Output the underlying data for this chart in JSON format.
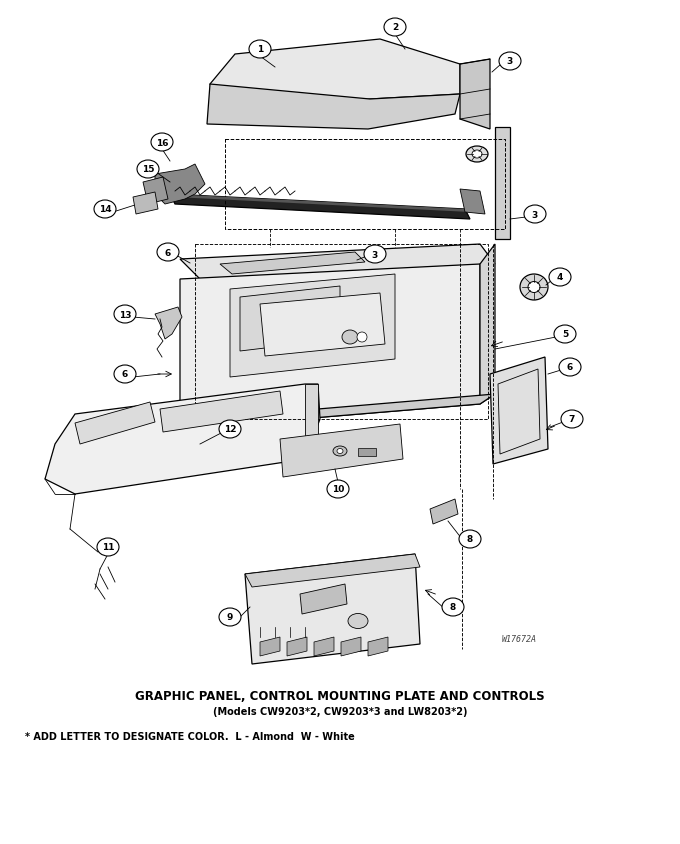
{
  "title_main": "GRAPHIC PANEL, CONTROL MOUNTING PLATE AND CONTROLS",
  "title_sub": "(Models CW9203*2, CW9203*3 and LW8203*2)",
  "footnote": "* ADD LETTER TO DESIGNATE COLOR.  L - Almond  W - White",
  "watermark": "W17672A",
  "bg_color": "#ffffff",
  "fg_color": "#000000",
  "figsize": [
    6.8,
    8.45
  ],
  "dpi": 100
}
